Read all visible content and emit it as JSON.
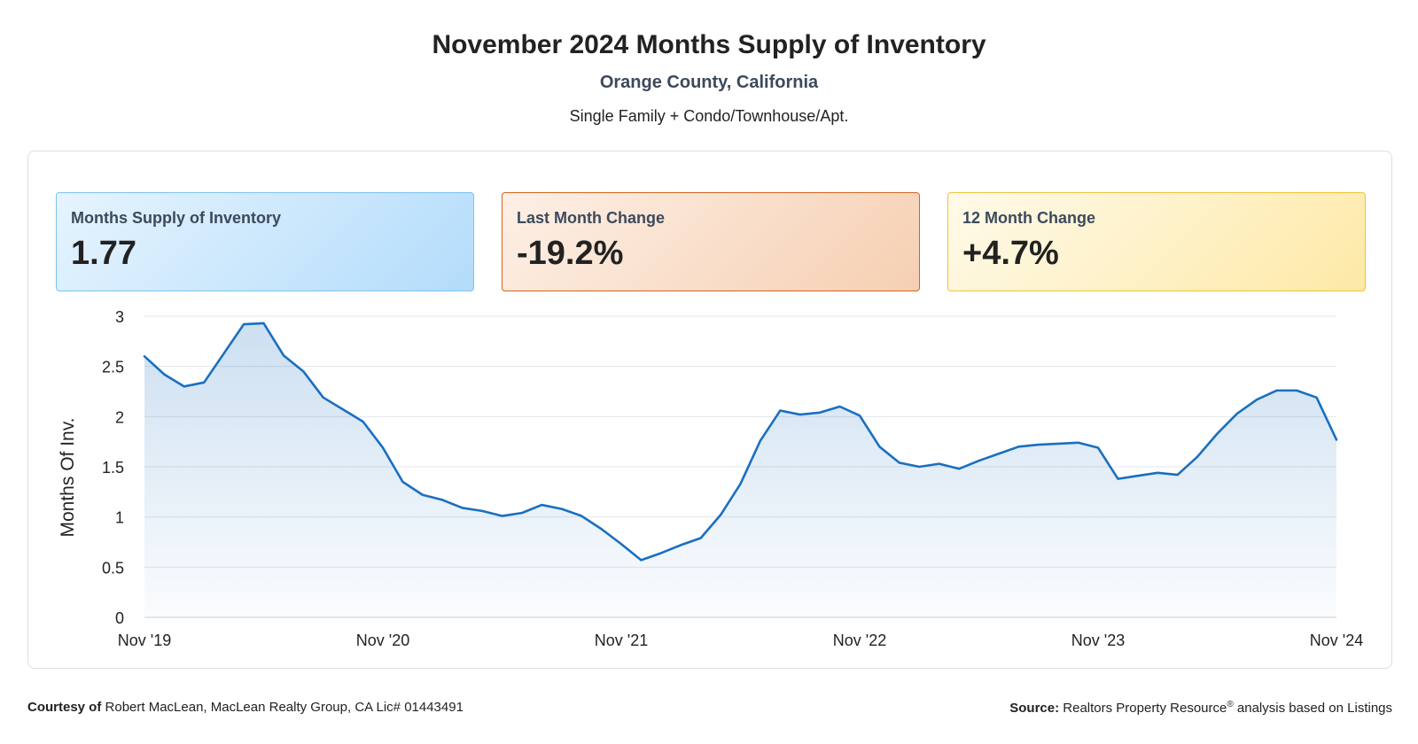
{
  "header": {
    "title": "November 2024 Months Supply of Inventory",
    "subtitle": "Orange County, California",
    "subtitle2": "Single Family + Condo/Townhouse/Apt."
  },
  "cards": [
    {
      "label": "Months Supply of Inventory",
      "value": "1.77",
      "border": "#7cc2f2"
    },
    {
      "label": "Last Month Change",
      "value": "-19.2%",
      "border": "#d2641f"
    },
    {
      "label": "12 Month Change",
      "value": "+4.7%",
      "border": "#f0c234"
    }
  ],
  "footer": {
    "courtesy_label": "Courtesy of",
    "courtesy_text": "Robert MacLean, MacLean Realty Group, CA Lic# 01443491",
    "source_label": "Source:",
    "source_text": "Realtors Property Resource",
    "source_reg": "®",
    "source_suffix": "analysis based on Listings"
  },
  "chart_data": {
    "type": "area",
    "title": "",
    "xlabel": "",
    "ylabel": "Months Of Inv.",
    "ylim": [
      0,
      3
    ],
    "yticks": [
      "0",
      "0.5",
      "1",
      "1.5",
      "2",
      "2.5",
      "3"
    ],
    "xtick_labels": [
      "Nov '19",
      "Nov '20",
      "Nov '21",
      "Nov '22",
      "Nov '23",
      "Nov '24"
    ],
    "xtick_indices": [
      0,
      12,
      24,
      36,
      48,
      60
    ],
    "line_color": "#1a6fbf",
    "grid": true,
    "series": [
      {
        "values": [
          2.6,
          2.42,
          2.3,
          2.34,
          2.63,
          2.92,
          2.93,
          2.61,
          2.45,
          2.19,
          2.07,
          1.95,
          1.69,
          1.35,
          1.22,
          1.17,
          1.09,
          1.06,
          1.01,
          1.04,
          1.12,
          1.08,
          1.01,
          0.88,
          0.73,
          0.57,
          0.64,
          0.72,
          0.79,
          1.02,
          1.33,
          1.76,
          2.06,
          2.02,
          2.04,
          2.1,
          2.01,
          1.7,
          1.54,
          1.5,
          1.53,
          1.48,
          1.56,
          1.63,
          1.7,
          1.72,
          1.73,
          1.74,
          1.69,
          1.38,
          1.41,
          1.44,
          1.42,
          1.6,
          1.83,
          2.03,
          2.17,
          2.26,
          2.26,
          2.19,
          1.77
        ]
      }
    ]
  }
}
